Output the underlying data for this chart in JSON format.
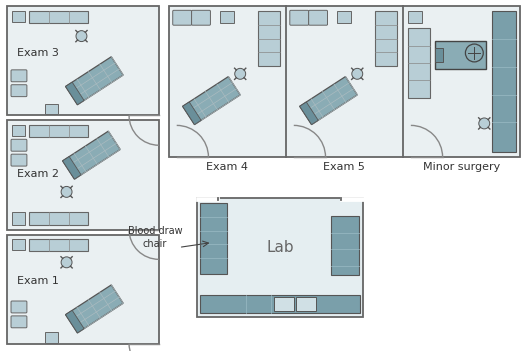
{
  "room_bg": "#eaf0f2",
  "furn_mid": "#8aacb5",
  "furn_light": "#b8ced6",
  "furn_dark": "#6a8f9a",
  "counter_dark": "#7a9faa",
  "lab_bg": "#e5eef1",
  "wall_ec": "#666666",
  "text_color": "#333333",
  "label_fs": 8,
  "white": "#ffffff",
  "exam_labels": [
    "Exam 1",
    "Exam 2",
    "Exam 3",
    "Exam 4",
    "Exam 5",
    "Minor surgery"
  ]
}
